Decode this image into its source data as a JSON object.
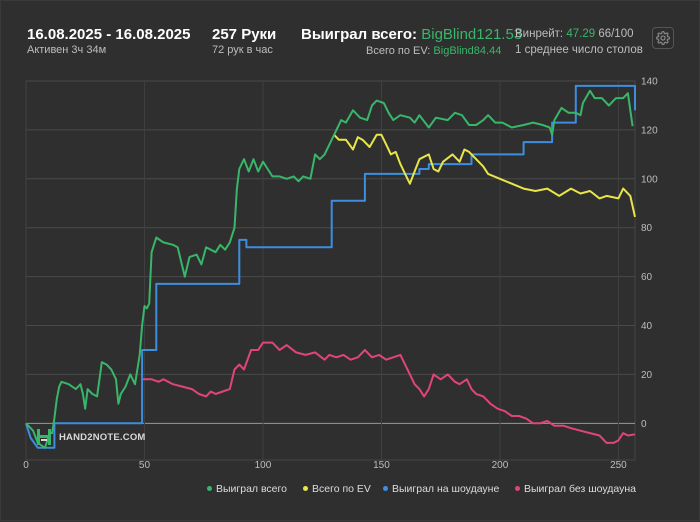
{
  "header": {
    "date_range": "16.08.2025 - 16.08.2025",
    "active_time": "Активен 3ч 34м",
    "hands": "257 Руки",
    "hands_per_hour": "72 рук в час",
    "won_label": "Выиграл всего:",
    "won_value": "BigBlind121.53",
    "ev_label": "Всего по EV:",
    "ev_value": "BigBlind84.44",
    "winrate_label": "Винрейт:",
    "winrate_value": "47.29",
    "winrate_rest": "66/100",
    "tables": "1 среднее число столов"
  },
  "settings_icon": "gear-icon",
  "watermark": "HAND2NOTE.COM",
  "colors": {
    "won": "#38b66a",
    "ev": "#e8e54a",
    "showdown": "#3d8ee0",
    "non_showdown": "#e0457a",
    "background": "#2f2f2f",
    "grid": "#4a4a4a"
  },
  "chart_data": {
    "type": "line",
    "xlim": [
      0,
      257
    ],
    "ylim": [
      -15,
      140
    ],
    "x_ticks": [
      0,
      50,
      100,
      150,
      200,
      250
    ],
    "y_ticks": [
      0,
      20,
      40,
      60,
      80,
      100,
      120,
      140
    ],
    "grid": true,
    "legend_position": "bottom-right",
    "series": [
      {
        "name": "Выиграл всего",
        "color": "#38b66a",
        "points": [
          [
            0,
            0
          ],
          [
            3,
            -3
          ],
          [
            5,
            -8
          ],
          [
            8,
            -10
          ],
          [
            10,
            -4
          ],
          [
            11,
            -4
          ],
          [
            12,
            2
          ],
          [
            13,
            10
          ],
          [
            14,
            15
          ],
          [
            15,
            17
          ],
          [
            18,
            16
          ],
          [
            21,
            14
          ],
          [
            23,
            16
          ],
          [
            24,
            12
          ],
          [
            25,
            6
          ],
          [
            26,
            14
          ],
          [
            28,
            12
          ],
          [
            30,
            11
          ],
          [
            32,
            25
          ],
          [
            34,
            24
          ],
          [
            36,
            22
          ],
          [
            38,
            18
          ],
          [
            39,
            8
          ],
          [
            40,
            12
          ],
          [
            42,
            15
          ],
          [
            44,
            20
          ],
          [
            45,
            18
          ],
          [
            46,
            16
          ],
          [
            48,
            28
          ],
          [
            49,
            40
          ],
          [
            50,
            48
          ],
          [
            51,
            47
          ],
          [
            52,
            49
          ],
          [
            53,
            70
          ],
          [
            55,
            76
          ],
          [
            58,
            74
          ],
          [
            62,
            73
          ],
          [
            64,
            72
          ],
          [
            67,
            60
          ],
          [
            69,
            68
          ],
          [
            72,
            69
          ],
          [
            74,
            65
          ],
          [
            76,
            72
          ],
          [
            80,
            70
          ],
          [
            82,
            73
          ],
          [
            84,
            71
          ],
          [
            86,
            74
          ],
          [
            88,
            80
          ],
          [
            89,
            96
          ],
          [
            90,
            104
          ],
          [
            92,
            108
          ],
          [
            94,
            103
          ],
          [
            96,
            108
          ],
          [
            98,
            103
          ],
          [
            100,
            107
          ],
          [
            102,
            104
          ],
          [
            104,
            101
          ],
          [
            107,
            101
          ],
          [
            110,
            100
          ],
          [
            113,
            101
          ],
          [
            115,
            99
          ],
          [
            117,
            101
          ],
          [
            120,
            100
          ],
          [
            122,
            110
          ],
          [
            124,
            108
          ],
          [
            126,
            110
          ],
          [
            130,
            118
          ],
          [
            133,
            124
          ],
          [
            135,
            123
          ],
          [
            138,
            128
          ],
          [
            141,
            125
          ],
          [
            144,
            124
          ],
          [
            146,
            130
          ],
          [
            148,
            132
          ],
          [
            151,
            131
          ],
          [
            153,
            127
          ],
          [
            155,
            124
          ],
          [
            158,
            126
          ],
          [
            162,
            125
          ],
          [
            164,
            123
          ],
          [
            166,
            126
          ],
          [
            170,
            121
          ],
          [
            173,
            125
          ],
          [
            178,
            124
          ],
          [
            181,
            127
          ],
          [
            184,
            126
          ],
          [
            187,
            122
          ],
          [
            190,
            122
          ],
          [
            193,
            124
          ],
          [
            195,
            126
          ],
          [
            198,
            123
          ],
          [
            201,
            123
          ],
          [
            205,
            121
          ],
          [
            210,
            122
          ],
          [
            214,
            123
          ],
          [
            218,
            122
          ],
          [
            221,
            121
          ],
          [
            222,
            118
          ],
          [
            223,
            124
          ],
          [
            226,
            129
          ],
          [
            229,
            127
          ],
          [
            232,
            127
          ],
          [
            234,
            126
          ],
          [
            235,
            131
          ],
          [
            238,
            136
          ],
          [
            240,
            133
          ],
          [
            243,
            133
          ],
          [
            246,
            130
          ],
          [
            249,
            133
          ],
          [
            252,
            133
          ],
          [
            254,
            135
          ],
          [
            255,
            128
          ],
          [
            256,
            121.53
          ]
        ]
      },
      {
        "name": "Всего по EV",
        "color": "#e8e54a",
        "points": [
          [
            130,
            118
          ],
          [
            132,
            116
          ],
          [
            135,
            116
          ],
          [
            138,
            112
          ],
          [
            140,
            117
          ],
          [
            142,
            116
          ],
          [
            145,
            113
          ],
          [
            148,
            118
          ],
          [
            150,
            118
          ],
          [
            152,
            114
          ],
          [
            154,
            110
          ],
          [
            156,
            111
          ],
          [
            158,
            106
          ],
          [
            160,
            102
          ],
          [
            162,
            98
          ],
          [
            164,
            103
          ],
          [
            166,
            108
          ],
          [
            170,
            110
          ],
          [
            172,
            104
          ],
          [
            174,
            103
          ],
          [
            176,
            107
          ],
          [
            180,
            110
          ],
          [
            183,
            107
          ],
          [
            185,
            112
          ],
          [
            187,
            111
          ],
          [
            190,
            108
          ],
          [
            193,
            105
          ],
          [
            195,
            102
          ],
          [
            200,
            100
          ],
          [
            205,
            98
          ],
          [
            210,
            96
          ],
          [
            215,
            95
          ],
          [
            220,
            96
          ],
          [
            225,
            93
          ],
          [
            230,
            96
          ],
          [
            234,
            94
          ],
          [
            238,
            95
          ],
          [
            242,
            92
          ],
          [
            245,
            93
          ],
          [
            250,
            92
          ],
          [
            252,
            96
          ],
          [
            255,
            93
          ],
          [
            257,
            84.44
          ]
        ]
      },
      {
        "name": "Выиграл на шоудауне",
        "color": "#3d8ee0",
        "points": [
          [
            0,
            0
          ],
          [
            2,
            -6
          ],
          [
            5,
            -10
          ],
          [
            12,
            -10
          ],
          [
            12,
            0
          ],
          [
            49,
            0
          ],
          [
            49,
            30
          ],
          [
            55,
            30
          ],
          [
            55,
            57
          ],
          [
            90,
            57
          ],
          [
            90,
            75
          ],
          [
            93,
            75
          ],
          [
            93,
            72
          ],
          [
            129,
            72
          ],
          [
            129,
            91
          ],
          [
            143,
            91
          ],
          [
            143,
            102
          ],
          [
            166,
            102
          ],
          [
            166,
            104
          ],
          [
            170,
            104
          ],
          [
            170,
            106
          ],
          [
            188,
            106
          ],
          [
            188,
            110
          ],
          [
            210,
            110
          ],
          [
            210,
            115
          ],
          [
            222,
            115
          ],
          [
            222,
            123
          ],
          [
            232,
            123
          ],
          [
            232,
            138
          ],
          [
            257,
            138
          ],
          [
            257,
            128
          ]
        ]
      },
      {
        "name": "Выиграл без шоудауна",
        "color": "#e0457a",
        "points": [
          [
            49,
            18
          ],
          [
            53,
            18
          ],
          [
            56,
            17
          ],
          [
            58,
            18
          ],
          [
            62,
            16
          ],
          [
            66,
            15
          ],
          [
            70,
            14
          ],
          [
            73,
            12
          ],
          [
            76,
            11
          ],
          [
            78,
            13
          ],
          [
            80,
            12
          ],
          [
            83,
            13
          ],
          [
            86,
            14
          ],
          [
            88,
            22
          ],
          [
            90,
            24
          ],
          [
            92,
            22
          ],
          [
            95,
            30
          ],
          [
            98,
            30
          ],
          [
            100,
            33
          ],
          [
            104,
            33
          ],
          [
            107,
            30
          ],
          [
            110,
            32
          ],
          [
            114,
            29
          ],
          [
            118,
            28
          ],
          [
            122,
            29
          ],
          [
            126,
            26
          ],
          [
            128,
            28
          ],
          [
            131,
            27
          ],
          [
            134,
            28
          ],
          [
            137,
            26
          ],
          [
            140,
            27
          ],
          [
            143,
            30
          ],
          [
            146,
            27
          ],
          [
            149,
            28
          ],
          [
            152,
            26
          ],
          [
            155,
            27
          ],
          [
            158,
            28
          ],
          [
            160,
            24
          ],
          [
            162,
            20
          ],
          [
            164,
            16
          ],
          [
            166,
            14
          ],
          [
            168,
            11
          ],
          [
            170,
            14
          ],
          [
            172,
            20
          ],
          [
            175,
            18
          ],
          [
            178,
            20
          ],
          [
            181,
            17
          ],
          [
            183,
            16
          ],
          [
            186,
            18
          ],
          [
            188,
            14
          ],
          [
            190,
            12
          ],
          [
            193,
            11
          ],
          [
            196,
            8
          ],
          [
            199,
            6
          ],
          [
            202,
            5
          ],
          [
            205,
            3
          ],
          [
            208,
            3
          ],
          [
            211,
            2
          ],
          [
            214,
            0
          ],
          [
            217,
            0
          ],
          [
            220,
            1
          ],
          [
            223,
            -1
          ],
          [
            227,
            -1
          ],
          [
            230,
            -2
          ],
          [
            234,
            -3
          ],
          [
            238,
            -4
          ],
          [
            242,
            -5
          ],
          [
            245,
            -8
          ],
          [
            248,
            -8
          ],
          [
            250,
            -7
          ],
          [
            252,
            -4
          ],
          [
            254,
            -5
          ],
          [
            257,
            -4.5
          ]
        ]
      }
    ]
  }
}
